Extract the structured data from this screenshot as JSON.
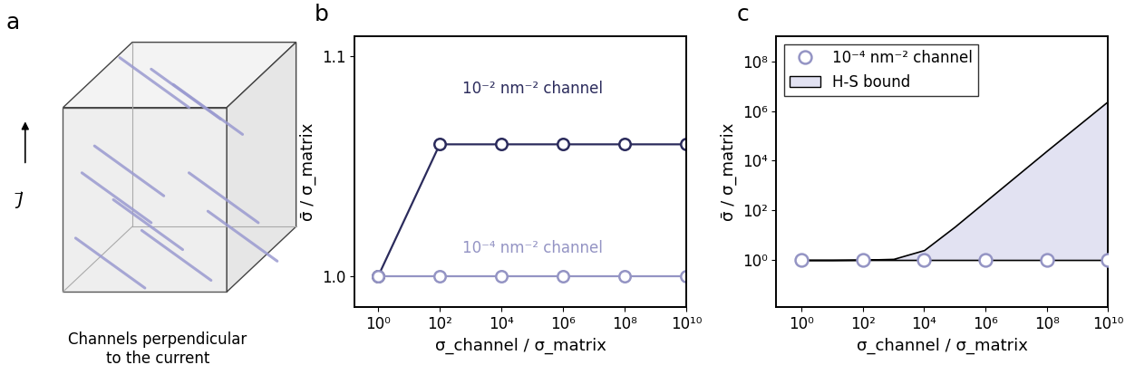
{
  "diagram": {
    "label": "a",
    "current_label": "J⃗",
    "caption": "Channels perpendicular\nto the current"
  },
  "chart_data": [
    {
      "type": "line",
      "title": "b",
      "x_label": "σ_channel / σ_matrix",
      "y_label": "σ̄ / σ_matrix",
      "log": "x",
      "x": [
        1,
        100,
        10000,
        1000000,
        100000000,
        10000000000
      ],
      "series": [
        {
          "name": "10⁻² nm⁻² channel",
          "color": "#2b2b5c",
          "marker": "o",
          "line_style": "solid",
          "values": [
            1.0,
            1.06,
            1.06,
            1.06,
            1.06,
            1.06
          ]
        },
        {
          "name": "10⁻⁴ nm⁻² channel",
          "color": "#9494c4",
          "marker": "o",
          "line_style": "solid",
          "values": [
            1.0,
            1.0,
            1.0,
            1.0,
            1.0,
            1.0
          ]
        }
      ],
      "xlim": [
        0.17,
        10000000000
      ],
      "xticks": [
        {
          "value": 1,
          "label": "10⁰"
        },
        {
          "value": 100,
          "label": "10²"
        },
        {
          "value": 10000,
          "label": "10⁴"
        },
        {
          "value": 1000000,
          "label": "10⁶"
        },
        {
          "value": 100000000,
          "label": "10⁸"
        },
        {
          "value": 10000000000,
          "label": "10¹⁰"
        }
      ],
      "ylim": [
        0.986,
        1.109
      ],
      "yticks": [
        {
          "value": 1.0,
          "label": "1.0"
        },
        {
          "value": 1.1,
          "label": "1.1"
        }
      ]
    },
    {
      "type": "scatter",
      "title": "c",
      "x_label": "σ_channel / σ_matrix",
      "y_label": "σ̄ / σ_matrix",
      "log": true,
      "legend": "upper left",
      "series": [
        {
          "name": "10⁻⁴ nm⁻² channel",
          "type": "scatter",
          "color": "#9494c4",
          "marker": "o",
          "x": [
            1,
            100,
            10000,
            1000000,
            100000000,
            10000000000
          ],
          "values": [
            1.0,
            1.0,
            1.0,
            1.0,
            1.0,
            1.0
          ]
        },
        {
          "name": "H-S bound",
          "type": "area",
          "color": "#e2e2f2",
          "x": [
            1,
            10,
            100,
            1000,
            10000,
            100000,
            1000000,
            10000000,
            100000000,
            1000000000,
            10000000000
          ],
          "values": [
            1.0,
            1.0,
            1.02,
            1.1,
            2.5,
            22,
            230,
            2400,
            25000,
            250000,
            2500000
          ],
          "lower": [
            1,
            1,
            1,
            1,
            1,
            1,
            1,
            1,
            1,
            1,
            1
          ]
        }
      ],
      "xlim": [
        0.15,
        10000000000
      ],
      "xticks": [
        {
          "value": 1,
          "label": "10⁰"
        },
        {
          "value": 100,
          "label": "10²"
        },
        {
          "value": 10000,
          "label": "10⁴"
        },
        {
          "value": 1000000,
          "label": "10⁶"
        },
        {
          "value": 100000000,
          "label": "10⁸"
        },
        {
          "value": 10000000000,
          "label": "10¹⁰"
        }
      ],
      "ylim": [
        0.0125,
        1000000000
      ],
      "yticks": [
        {
          "value": 1,
          "label": "10⁰"
        },
        {
          "value": 100,
          "label": "10²"
        },
        {
          "value": 10000,
          "label": "10⁴"
        },
        {
          "value": 1000000,
          "label": "10⁶"
        },
        {
          "value": 100000000,
          "label": "10⁸"
        }
      ]
    }
  ]
}
